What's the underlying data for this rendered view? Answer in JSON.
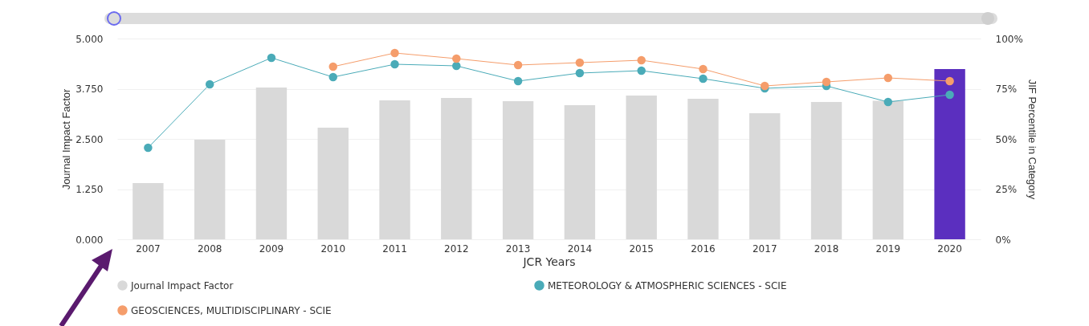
{
  "chart_data": {
    "type": "bar",
    "xlabel": "JCR Years",
    "ylabel": "Journal Impact Factor",
    "y2label": "JIF Percentile in Category",
    "categories": [
      "2007",
      "2008",
      "2009",
      "2010",
      "2011",
      "2012",
      "2013",
      "2014",
      "2015",
      "2016",
      "2017",
      "2018",
      "2019",
      "2020"
    ],
    "series": [
      {
        "name": "Journal Impact Factor",
        "color": "#d9d9d9",
        "colors": [
          "#d9d9d9",
          "#d9d9d9",
          "#d9d9d9",
          "#d9d9d9",
          "#d9d9d9",
          "#d9d9d9",
          "#d9d9d9",
          "#d9d9d9",
          "#d9d9d9",
          "#d9d9d9",
          "#d9d9d9",
          "#d9d9d9",
          "#d9d9d9",
          "#5b2fbf"
        ],
        "values": [
          1.4,
          2.48,
          3.78,
          2.78,
          3.46,
          3.52,
          3.44,
          3.34,
          3.58,
          3.5,
          3.14,
          3.42,
          3.45,
          4.24
        ]
      },
      {
        "name": "METEOROLOGY & ATMOSPHERIC SCIENCES - SCIE",
        "type": "line",
        "axis": "y2",
        "color": "#4aabb8",
        "values": [
          45.6,
          77.2,
          90.4,
          80.8,
          87.2,
          86.4,
          78.8,
          82.8,
          84,
          80,
          75.2,
          76.4,
          68.4,
          72
        ]
      },
      {
        "name": "GEOSCIENCES, MULTIDISCIPLINARY - SCIE",
        "type": "line",
        "axis": "y2",
        "color": "#f59d6b",
        "values": [
          null,
          null,
          null,
          86,
          92.8,
          90,
          86.8,
          88,
          89.2,
          84.8,
          76.4,
          78.4,
          80.4,
          78.8
        ]
      }
    ],
    "ylim": [
      0,
      5
    ],
    "yticks": [
      {
        "value": 0,
        "label": "0.000"
      },
      {
        "value": 1.25,
        "label": "1.250"
      },
      {
        "value": 2.5,
        "label": "2.500"
      },
      {
        "value": 3.75,
        "label": "3.750"
      },
      {
        "value": 5,
        "label": "5.000"
      }
    ],
    "y2lim": [
      0,
      100
    ],
    "y2ticks": [
      {
        "value": 0,
        "label": "0%"
      },
      {
        "value": 25,
        "label": "25%"
      },
      {
        "value": 50,
        "label": "50%"
      },
      {
        "value": 75,
        "label": "75%"
      },
      {
        "value": 100,
        "label": "100%"
      }
    ],
    "grid": "y",
    "legend": "bottom",
    "marker": "circle",
    "line_style": "solid"
  }
}
